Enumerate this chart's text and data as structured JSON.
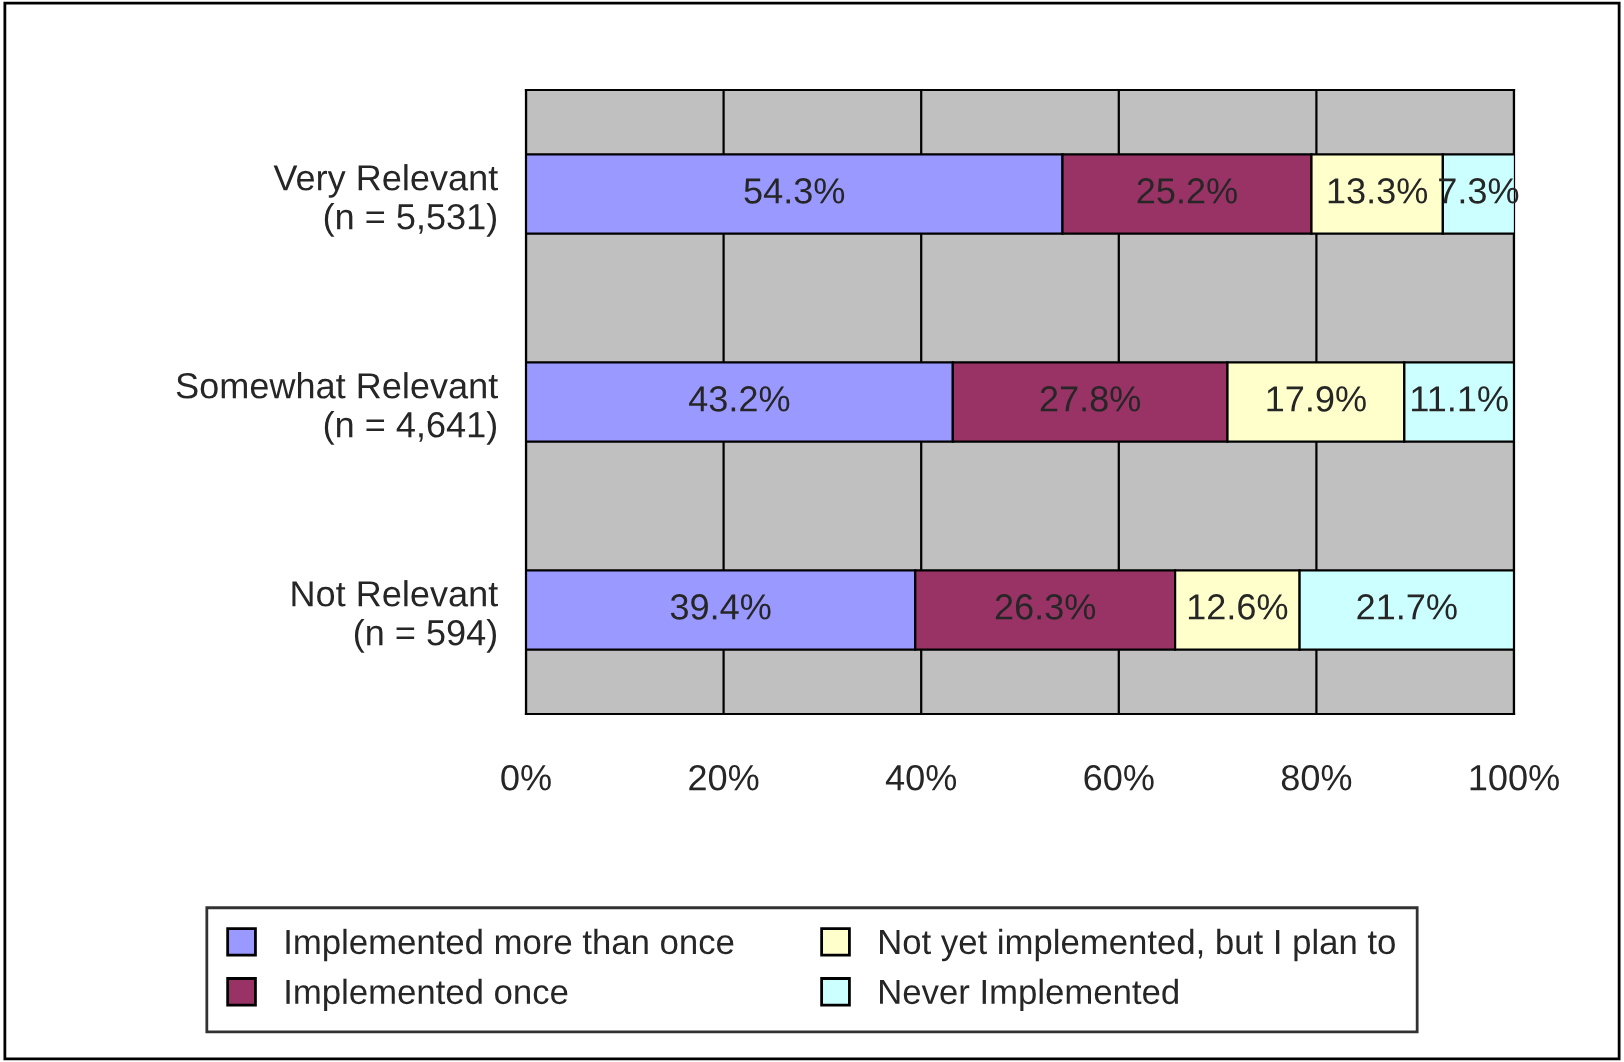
{
  "chart_data": {
    "type": "bar",
    "orientation": "horizontal",
    "stacked": true,
    "categories": [
      "Very Relevant\n(n = 5,531)",
      "Somewhat Relevant\n(n = 4,641)",
      "Not Relevant\n(n = 594)"
    ],
    "series": [
      {
        "name": "Implemented more than once",
        "color": "#9999ff",
        "values": [
          54.3,
          43.2,
          39.4
        ],
        "value_labels": [
          "54.3%",
          "43.2%",
          "39.4%"
        ]
      },
      {
        "name": "Implemented once",
        "color": "#993366",
        "values": [
          25.2,
          27.8,
          26.3
        ],
        "value_labels": [
          "25.2%",
          "27.8%",
          "26.3%"
        ]
      },
      {
        "name": "Not yet implemented, but I plan to",
        "color": "#ffffcc",
        "values": [
          13.3,
          17.9,
          12.6
        ],
        "value_labels": [
          "13.3%",
          "17.9%",
          "12.6%"
        ]
      },
      {
        "name": "Never Implemented",
        "color": "#ccffff",
        "values": [
          7.3,
          11.1,
          21.7
        ],
        "value_labels": [
          "7.3%",
          "11.1%",
          "21.7%"
        ]
      }
    ],
    "xlim": [
      0,
      100
    ],
    "xticks": [
      {
        "value": 0,
        "label": "0%"
      },
      {
        "value": 20,
        "label": "20%"
      },
      {
        "value": 40,
        "label": "40%"
      },
      {
        "value": 60,
        "label": "60%"
      },
      {
        "value": 80,
        "label": "80%"
      },
      {
        "value": 100,
        "label": "100%"
      }
    ],
    "grid": "x",
    "legend": "bottom"
  }
}
